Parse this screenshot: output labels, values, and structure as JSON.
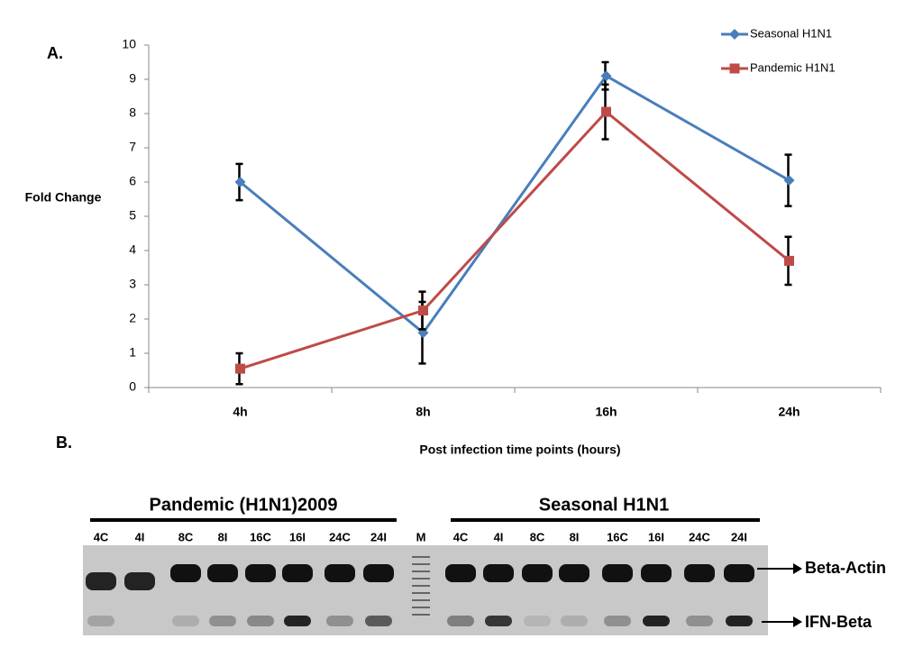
{
  "chart_data": {
    "type": "line",
    "categories": [
      "4h",
      "8h",
      "16h",
      "24h"
    ],
    "series": [
      {
        "name": "Seasonal H1N1",
        "color": "#4a7ebb",
        "marker": "diamond",
        "values": [
          6.0,
          1.6,
          9.1,
          6.05
        ],
        "errors": [
          0.53,
          0.9,
          0.4,
          0.75
        ]
      },
      {
        "name": "Pandemic H1N1",
        "color": "#be4b48",
        "marker": "square",
        "values": [
          0.55,
          2.25,
          8.05,
          3.7
        ],
        "errors": [
          0.45,
          0.55,
          0.8,
          0.7
        ]
      }
    ],
    "ylabel": "Fold Change",
    "xlabel": "Post infection time points (hours)",
    "ylim": [
      0,
      10
    ],
    "yticks": [
      0,
      1,
      2,
      3,
      4,
      5,
      6,
      7,
      8,
      9,
      10
    ],
    "legend": "upper right"
  },
  "panel_labels": [
    "A.",
    "B."
  ],
  "gel": {
    "groups": [
      "Pandemic (H1N1)2009",
      "Seasonal H1N1"
    ],
    "lanes": [
      "4C",
      "4I",
      "8C",
      "8I",
      "16C",
      "16I",
      "24C",
      "24I",
      "M",
      "4C",
      "4I",
      "8C",
      "8I",
      "16C",
      "16I",
      "24C",
      "24I"
    ],
    "bands": [
      "Beta-Actin",
      "IFN-Beta"
    ]
  }
}
